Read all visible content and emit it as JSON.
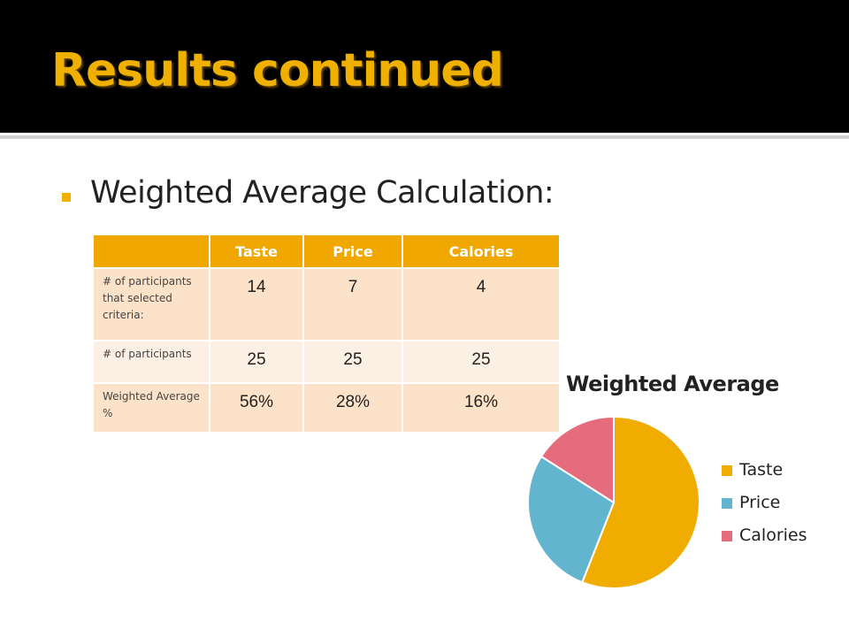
{
  "slide": {
    "title": "Results continued",
    "bullet": "Weighted Average Calculation:"
  },
  "table": {
    "headers": [
      "",
      "Taste",
      "Price",
      "Calories"
    ],
    "rows": [
      {
        "label": "# of participants that selected criteria:",
        "values": [
          "14",
          "7",
          "4"
        ]
      },
      {
        "label": "# of participants",
        "values": [
          "25",
          "25",
          "25"
        ]
      },
      {
        "label": "Weighted Average %",
        "values": [
          "56%",
          "28%",
          "16%"
        ]
      }
    ]
  },
  "chart_data": {
    "type": "pie",
    "title": "Weighted Average",
    "categories": [
      "Taste",
      "Price",
      "Calories"
    ],
    "values": [
      56,
      28,
      16
    ],
    "colors": [
      "#f0ac00",
      "#63b4ce",
      "#e46c7c"
    ],
    "legend": "right"
  },
  "colors": {
    "title_bar": "#000000",
    "title_text": "#f0b000",
    "accent": "#f0b000",
    "table_header": "#f0a800",
    "table_row_dark": "#fbe2c8",
    "table_row_light": "#fcefe4"
  }
}
